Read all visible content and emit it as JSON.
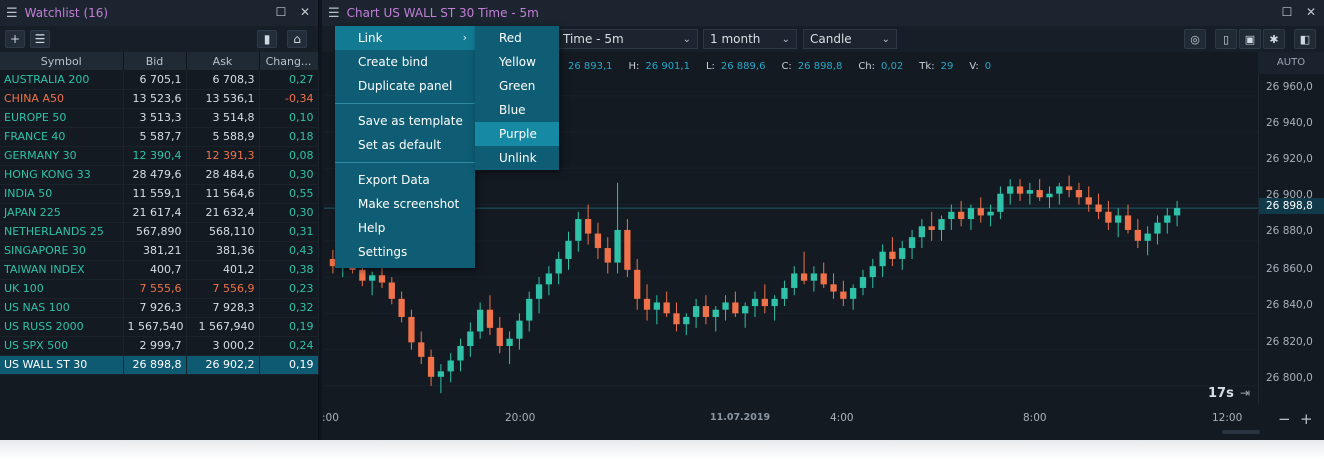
{
  "watchlist": {
    "title": "Watchlist (16)",
    "columns": [
      "Symbol",
      "Bid",
      "Ask",
      "Chang..."
    ],
    "rows": [
      {
        "symbol": "AUSTRALIA 200",
        "bid": "6 705,1",
        "ask": "6 708,3",
        "change": "0,27",
        "dir": "up"
      },
      {
        "symbol": "CHINA A50",
        "bid": "13 523,6",
        "ask": "13 536,1",
        "change": "-0,34",
        "dir": "down"
      },
      {
        "symbol": "EUROPE 50",
        "bid": "3 513,3",
        "ask": "3 514,8",
        "change": "0,10",
        "dir": "up"
      },
      {
        "symbol": "FRANCE 40",
        "bid": "5 587,7",
        "ask": "5 588,9",
        "change": "0,18",
        "dir": "up"
      },
      {
        "symbol": "GERMANY 30",
        "bid": "12 390,4",
        "ask": "12 391,3",
        "change": "0,08",
        "dir": "up",
        "bid_color": "grn",
        "ask_color": "red"
      },
      {
        "symbol": "HONG KONG 33",
        "bid": "28 479,6",
        "ask": "28 484,6",
        "change": "0,30",
        "dir": "up"
      },
      {
        "symbol": "INDIA 50",
        "bid": "11 559,1",
        "ask": "11 564,6",
        "change": "0,55",
        "dir": "up"
      },
      {
        "symbol": "JAPAN 225",
        "bid": "21 617,4",
        "ask": "21 632,4",
        "change": "0,30",
        "dir": "up"
      },
      {
        "symbol": "NETHERLANDS 25",
        "bid": "567,890",
        "ask": "568,110",
        "change": "0,31",
        "dir": "up"
      },
      {
        "symbol": "SINGAPORE 30",
        "bid": "381,21",
        "ask": "381,36",
        "change": "0,43",
        "dir": "up"
      },
      {
        "symbol": "TAIWAN INDEX",
        "bid": "400,7",
        "ask": "401,2",
        "change": "0,38",
        "dir": "up"
      },
      {
        "symbol": "UK 100",
        "bid": "7 555,6",
        "ask": "7 556,9",
        "change": "0,23",
        "dir": "up",
        "bid_color": "red",
        "ask_color": "red"
      },
      {
        "symbol": "US NAS 100",
        "bid": "7 926,3",
        "ask": "7 928,3",
        "change": "0,32",
        "dir": "up"
      },
      {
        "symbol": "US RUSS 2000",
        "bid": "1 567,540",
        "ask": "1 567,940",
        "change": "0,19",
        "dir": "up"
      },
      {
        "symbol": "US SPX 500",
        "bid": "2 999,7",
        "ask": "3 000,2",
        "change": "0,24",
        "dir": "up"
      },
      {
        "symbol": "US WALL ST 30",
        "bid": "26 898,8",
        "ask": "26 902,2",
        "change": "0,19",
        "dir": "up",
        "selected": true
      }
    ]
  },
  "chart": {
    "title": "Chart US WALL ST 30 Time - 5m",
    "timeframe": "Time - 5m",
    "range": "1 month",
    "style": "Candle",
    "ohlc": {
      "o_label": "O:",
      "o": "26 893,1",
      "h_label": "H:",
      "h": "26 901,1",
      "l_label": "L:",
      "l": "26 889,6",
      "c_label": "C:",
      "c": "26 898,8",
      "ch_label": "Ch:",
      "ch": "0,02",
      "tk_label": "Tk:",
      "tk": "29",
      "v_label": "V:",
      "v": "0"
    },
    "auto_label": "AUTO",
    "price_labels": [
      "26 960,0",
      "26 940,0",
      "26 920,0",
      "26 900,0",
      "26 880,0",
      "26 860,0",
      "26 840,0",
      "26 820,0",
      "26 800,0"
    ],
    "current_price": "26 898,8",
    "time_labels": [
      ":00",
      "20:00",
      "11.07.2019",
      "4:00",
      "8:00",
      "12:00"
    ],
    "countdown": "17s"
  },
  "context_menu": {
    "items": [
      "Link",
      "Create bind",
      "Duplicate panel",
      "Save as template",
      "Set as default",
      "Export Data",
      "Make screenshot",
      "Help",
      "Settings"
    ]
  },
  "link_submenu": {
    "items": [
      "Red",
      "Yellow",
      "Green",
      "Blue",
      "Purple",
      "Unlink"
    ],
    "highlighted": "Purple"
  },
  "colors": {
    "up": "#2fc2a8",
    "down": "#f0724a",
    "accent": "#c47ed8",
    "menu_bg": "#0e5d74"
  },
  "chart_data": {
    "type": "candlestick",
    "ylim": [
      26790,
      26972
    ],
    "candles": [
      [
        26870,
        26875,
        26862,
        26866
      ],
      [
        26866,
        26872,
        26860,
        26868
      ],
      [
        26868,
        26874,
        26862,
        26864
      ],
      [
        26864,
        26868,
        26855,
        26858
      ],
      [
        26858,
        26863,
        26850,
        26861
      ],
      [
        26861,
        26866,
        26854,
        26857
      ],
      [
        26857,
        26860,
        26845,
        26848
      ],
      [
        26848,
        26852,
        26835,
        26838
      ],
      [
        26838,
        26842,
        26820,
        26824
      ],
      [
        26824,
        26830,
        26812,
        26816
      ],
      [
        26816,
        26820,
        26800,
        26805
      ],
      [
        26805,
        26812,
        26796,
        26808
      ],
      [
        26808,
        26818,
        26802,
        26814
      ],
      [
        26814,
        26826,
        26808,
        26822
      ],
      [
        26822,
        26835,
        26816,
        26830
      ],
      [
        26830,
        26846,
        26826,
        26842
      ],
      [
        26842,
        26850,
        26828,
        26832
      ],
      [
        26832,
        26838,
        26818,
        26822
      ],
      [
        26822,
        26830,
        26812,
        26826
      ],
      [
        26826,
        26840,
        26820,
        26836
      ],
      [
        26836,
        26852,
        26830,
        26848
      ],
      [
        26848,
        26860,
        26840,
        26856
      ],
      [
        26856,
        26866,
        26850,
        26862
      ],
      [
        26862,
        26874,
        26856,
        26870
      ],
      [
        26870,
        26885,
        26864,
        26880
      ],
      [
        26880,
        26896,
        26874,
        26892
      ],
      [
        26892,
        26900,
        26878,
        26884
      ],
      [
        26884,
        26890,
        26870,
        26876
      ],
      [
        26876,
        26882,
        26862,
        26868
      ],
      [
        26868,
        26912,
        26862,
        26886
      ],
      [
        26886,
        26892,
        26860,
        26864
      ],
      [
        26864,
        26870,
        26842,
        26848
      ],
      [
        26848,
        26856,
        26836,
        26842
      ],
      [
        26842,
        26850,
        26834,
        26846
      ],
      [
        26846,
        26852,
        26838,
        26840
      ],
      [
        26840,
        26846,
        26830,
        26834
      ],
      [
        26834,
        26840,
        26828,
        26838
      ],
      [
        26838,
        26848,
        26832,
        26844
      ],
      [
        26844,
        26850,
        26834,
        26838
      ],
      [
        26838,
        26844,
        26830,
        26842
      ],
      [
        26842,
        26850,
        26836,
        26846
      ],
      [
        26846,
        26852,
        26838,
        26840
      ],
      [
        26840,
        26846,
        26832,
        26844
      ],
      [
        26844,
        26852,
        26838,
        26848
      ],
      [
        26848,
        26856,
        26840,
        26844
      ],
      [
        26844,
        26850,
        26836,
        26848
      ],
      [
        26848,
        26858,
        26844,
        26854
      ],
      [
        26854,
        26866,
        26850,
        26862
      ],
      [
        26862,
        26874,
        26856,
        26858
      ],
      [
        26858,
        26866,
        26852,
        26862
      ],
      [
        26862,
        26868,
        26854,
        26856
      ],
      [
        26856,
        26862,
        26848,
        26852
      ],
      [
        26852,
        26858,
        26844,
        26848
      ],
      [
        26848,
        26856,
        26842,
        26854
      ],
      [
        26854,
        26864,
        26850,
        26860
      ],
      [
        26860,
        26870,
        26854,
        26866
      ],
      [
        26866,
        26878,
        26860,
        26874
      ],
      [
        26874,
        26882,
        26866,
        26870
      ],
      [
        26870,
        26880,
        26864,
        26876
      ],
      [
        26876,
        26886,
        26870,
        26882
      ],
      [
        26882,
        26892,
        26876,
        26888
      ],
      [
        26888,
        26896,
        26880,
        26886
      ],
      [
        26886,
        26894,
        26880,
        26892
      ],
      [
        26892,
        26900,
        26886,
        26896
      ],
      [
        26896,
        26902,
        26888,
        26892
      ],
      [
        26892,
        26900,
        26886,
        26898
      ],
      [
        26898,
        26904,
        26890,
        26894
      ],
      [
        26894,
        26900,
        26888,
        26896
      ],
      [
        26896,
        26910,
        26892,
        26906
      ],
      [
        26906,
        26914,
        26900,
        26910
      ],
      [
        26910,
        26914,
        26902,
        26906
      ],
      [
        26906,
        26912,
        26900,
        26908
      ],
      [
        26908,
        26914,
        26902,
        26904
      ],
      [
        26904,
        26910,
        26898,
        26906
      ],
      [
        26906,
        26912,
        26900,
        26910
      ],
      [
        26910,
        26916,
        26904,
        26908
      ],
      [
        26908,
        26912,
        26900,
        26904
      ],
      [
        26904,
        26910,
        26896,
        26900
      ],
      [
        26900,
        26906,
        26892,
        26896
      ],
      [
        26896,
        26902,
        26886,
        26890
      ],
      [
        26890,
        26898,
        26882,
        26894
      ],
      [
        26894,
        26900,
        26884,
        26886
      ],
      [
        26886,
        26892,
        26876,
        26880
      ],
      [
        26880,
        26888,
        26872,
        26884
      ],
      [
        26884,
        26894,
        26878,
        26890
      ],
      [
        26890,
        26898,
        26884,
        26894
      ],
      [
        26894,
        26902,
        26888,
        26898
      ]
    ]
  }
}
